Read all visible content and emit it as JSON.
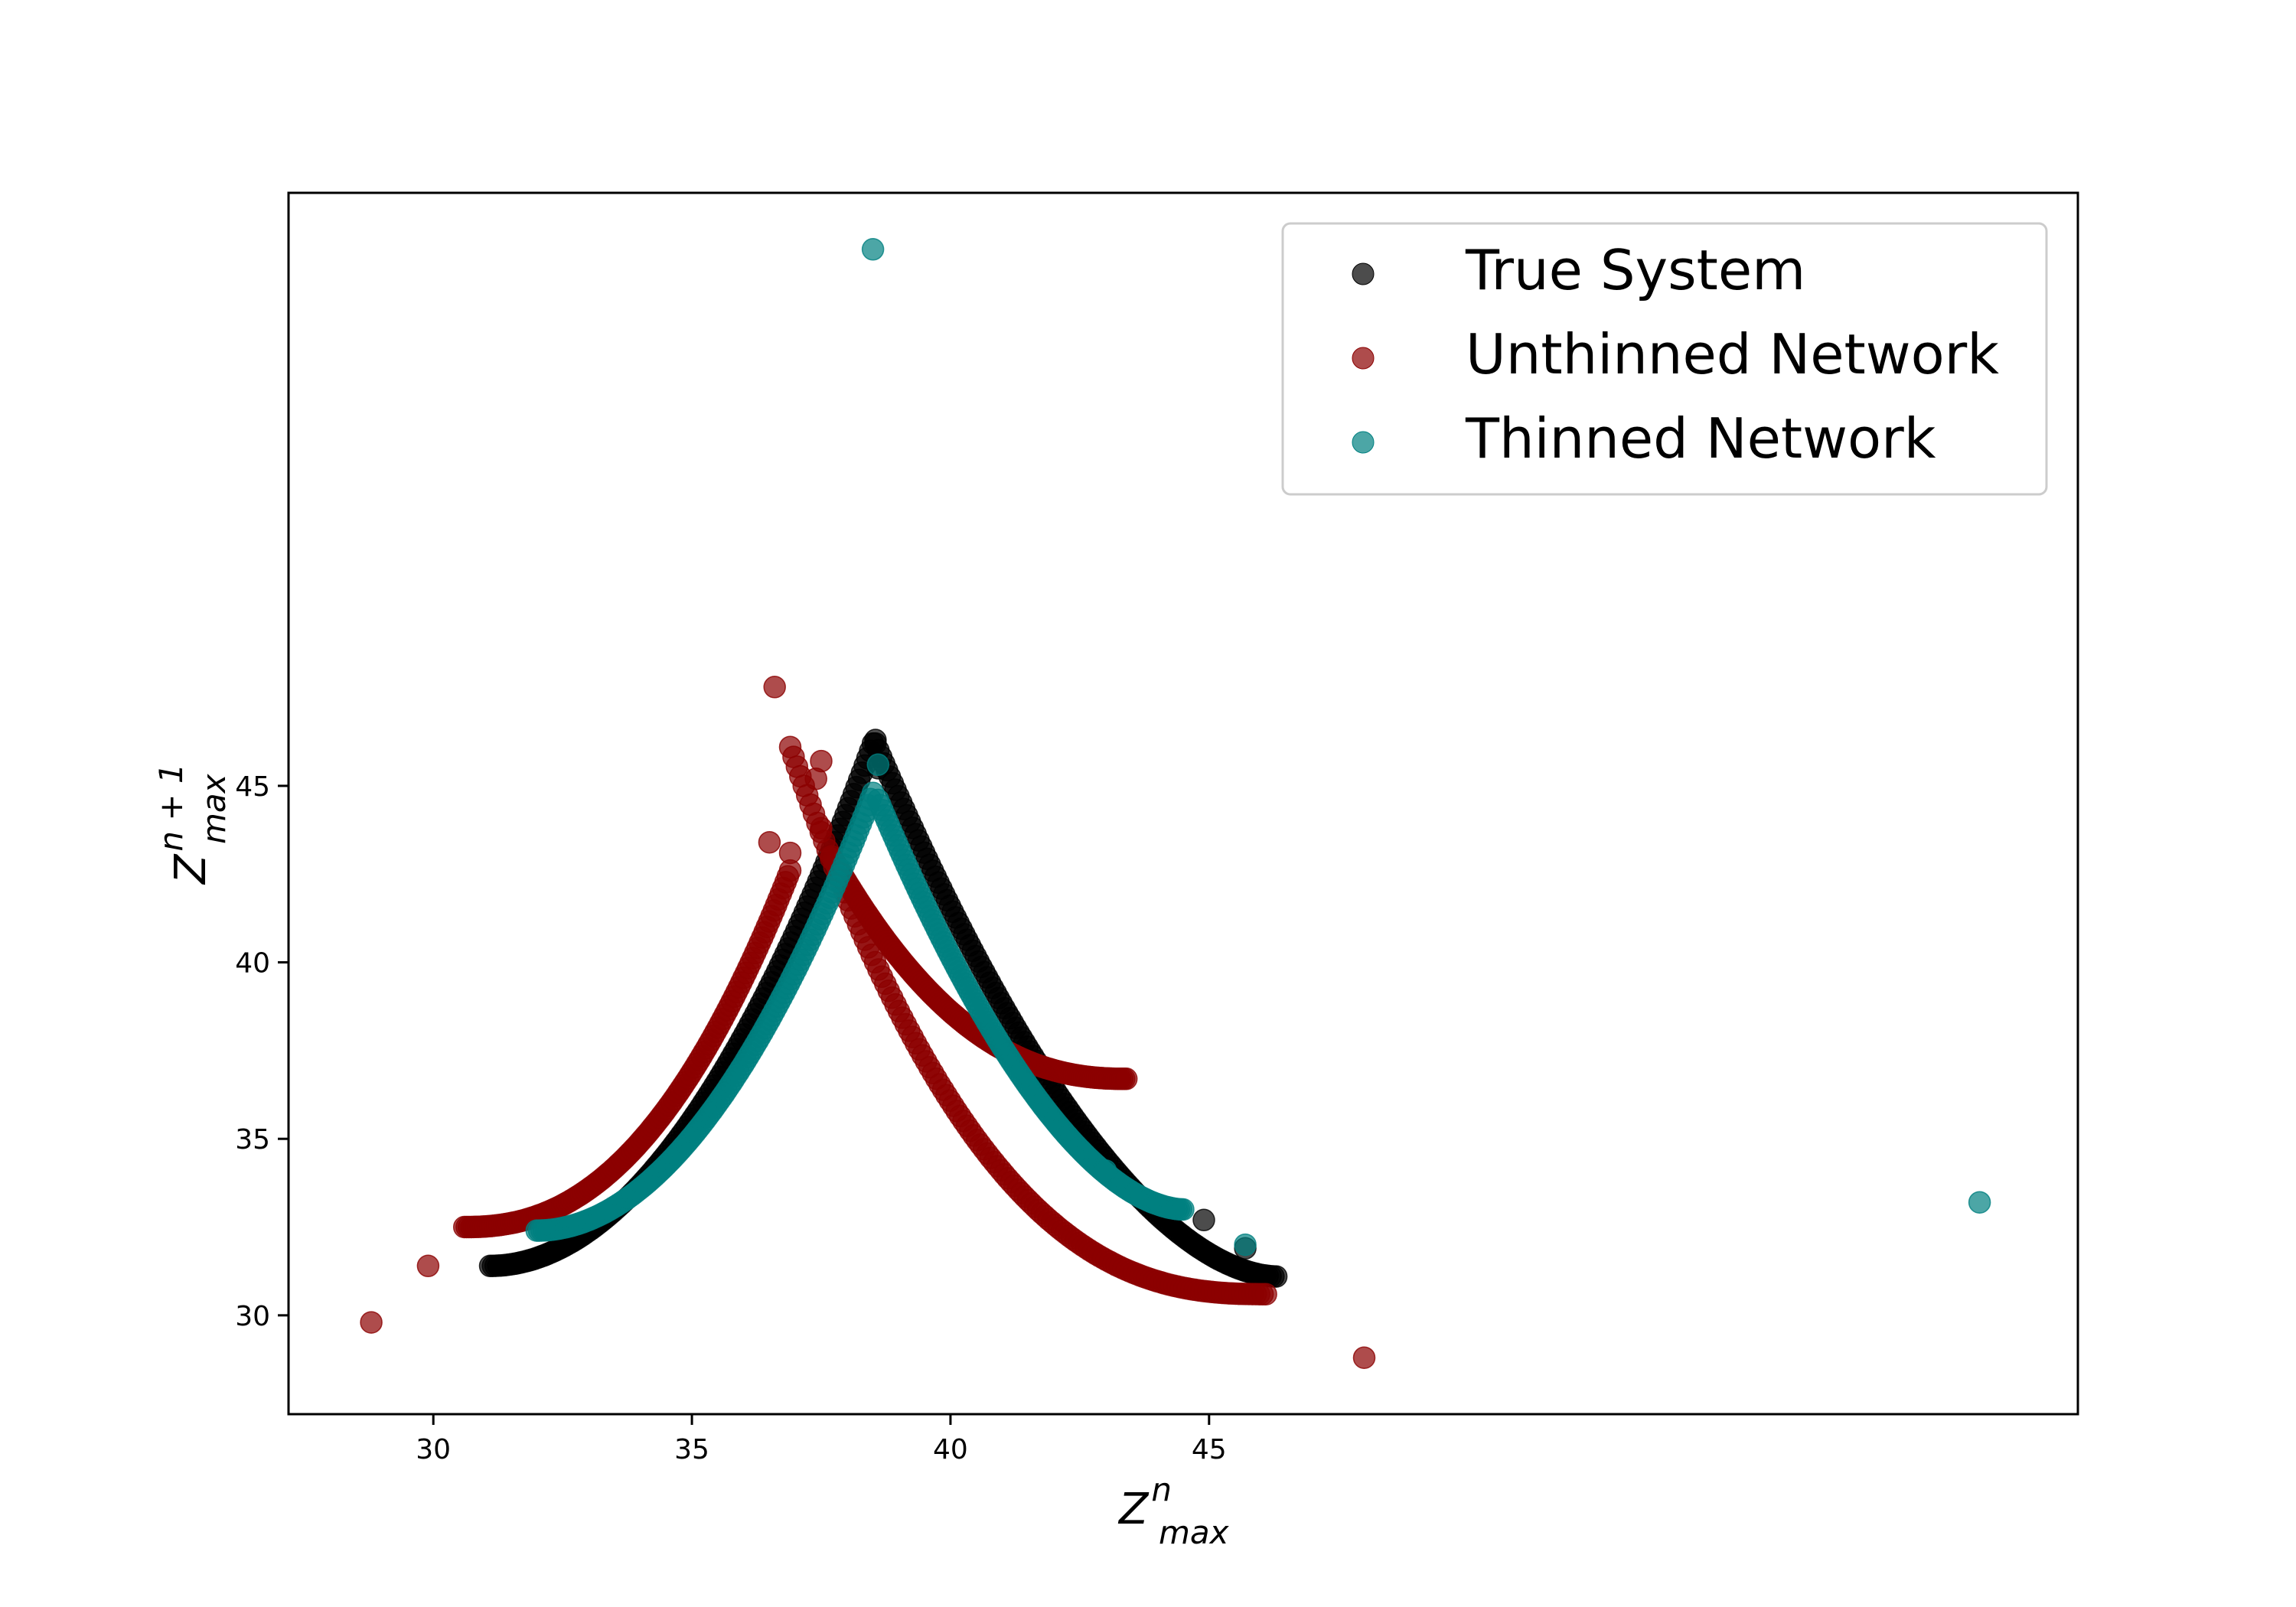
{
  "chart_data": {
    "type": "scatter",
    "xlabel": {
      "base": "Z",
      "sup": "n",
      "sub": "max"
    },
    "ylabel": {
      "base": "Z",
      "sup": "n + 1",
      "sub": "max"
    },
    "xlim": [
      27.2,
      61.8
    ],
    "ylim": [
      27.2,
      61.8
    ],
    "xticks": [
      30,
      35,
      40,
      45
    ],
    "yticks": [
      30,
      35,
      40,
      45
    ],
    "grid": false,
    "legend_position": "top-right",
    "series": [
      {
        "name": "True System",
        "color": "#000000",
        "alpha": 0.7,
        "left_branch": {
          "x_start": 31.1,
          "x_end": 38.5,
          "peak_y": 46.2,
          "y_start": 31.4,
          "curvature": 0.45
        },
        "right_branch": {
          "x_start": 38.55,
          "x_end": 46.3,
          "peak_y": 46.2,
          "y_end": 31.1,
          "curvature": 0.35
        },
        "extra_points": [
          {
            "x": 38.6,
            "y": 45.5
          },
          {
            "x": 38.55,
            "y": 46.3
          },
          {
            "x": 44.9,
            "y": 32.7
          },
          {
            "x": 45.7,
            "y": 31.9
          }
        ]
      },
      {
        "name": "Unthinned Network",
        "color": "#8b0000",
        "alpha": 0.7,
        "left_branch": {
          "x_start": 30.6,
          "x_end": 36.9,
          "peak_y": 42.6,
          "y_start": 32.5,
          "curvature": 0.6
        },
        "right_branch": {
          "x_start": 36.9,
          "x_end": 46.1,
          "peak_y": 46.1,
          "y_end": 30.6,
          "curvature": 0.7
        },
        "upper_right_branch": {
          "x_start": 37.7,
          "x_end": 43.4,
          "peak_y": 43.0,
          "y_end": 36.7,
          "curvature": 0.6
        },
        "extra_points": [
          {
            "x": 28.8,
            "y": 29.8
          },
          {
            "x": 29.9,
            "y": 31.4
          },
          {
            "x": 36.6,
            "y": 47.8
          },
          {
            "x": 37.5,
            "y": 45.7
          },
          {
            "x": 37.4,
            "y": 45.2
          },
          {
            "x": 36.5,
            "y": 43.4
          },
          {
            "x": 36.9,
            "y": 43.1
          },
          {
            "x": 37.5,
            "y": 43.8
          },
          {
            "x": 48.0,
            "y": 28.8
          }
        ]
      },
      {
        "name": "Thinned Network",
        "color": "#008080",
        "alpha": 0.7,
        "left_branch": {
          "x_start": 32.0,
          "x_end": 38.5,
          "peak_y": 44.8,
          "y_start": 32.4,
          "curvature": 0.45
        },
        "right_branch": {
          "x_start": 38.6,
          "x_end": 44.5,
          "peak_y": 44.6,
          "y_end": 33.0,
          "curvature": 0.35
        },
        "extra_points": [
          {
            "x": 38.5,
            "y": 60.2
          },
          {
            "x": 59.9,
            "y": 33.2
          },
          {
            "x": 45.7,
            "y": 32.0
          },
          {
            "x": 38.6,
            "y": 45.6
          },
          {
            "x": 43.0,
            "y": 34.1
          }
        ]
      }
    ]
  }
}
